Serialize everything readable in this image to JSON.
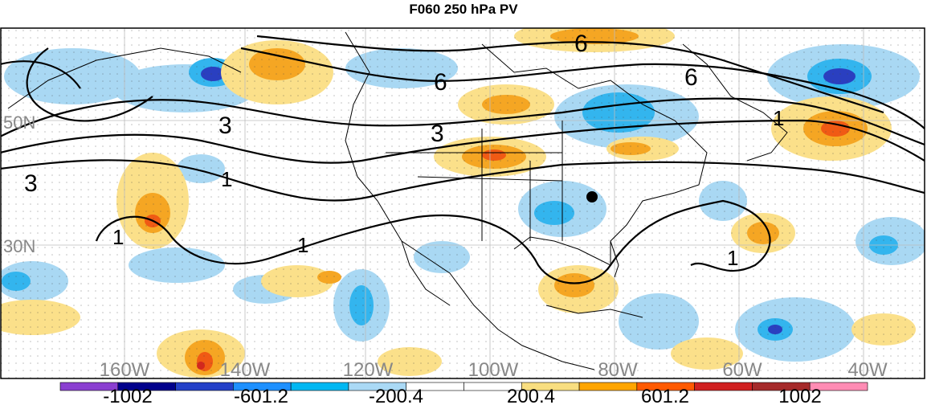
{
  "title": "F060 250 hPa PV",
  "lat_labels": [
    "50N",
    "30N"
  ],
  "lon_labels": [
    "160W",
    "140W",
    "120W",
    "100W",
    "80W",
    "60W",
    "40W"
  ],
  "contour_labels": [
    "6",
    "6",
    "6",
    "3",
    "3",
    "3",
    "1",
    "1",
    "1",
    "1",
    "1"
  ],
  "colorbar": {
    "tick_labels": [
      "-1002",
      "-601.2",
      "-200.4",
      "200.4",
      "601.2",
      "1002"
    ],
    "colors": [
      "#8a3fd1",
      "#00008b",
      "#2340c8",
      "#1e90ff",
      "#00b7f2",
      "#aad9f5",
      "#ffffff",
      "#ffffff",
      "#f8de80",
      "#ffa500",
      "#ff5a00",
      "#d02020",
      "#a52a2a",
      "#ff8cb4"
    ]
  },
  "palette": {
    "light_blue": "#a9d8f3",
    "mid_blue": "#33b5ee",
    "dark_blue": "#2a3fc0",
    "light_yellow": "#fbe08a",
    "orange": "#f5a623",
    "dark_orange": "#f05a14",
    "red": "#d2281e"
  },
  "marker": "black-dot"
}
